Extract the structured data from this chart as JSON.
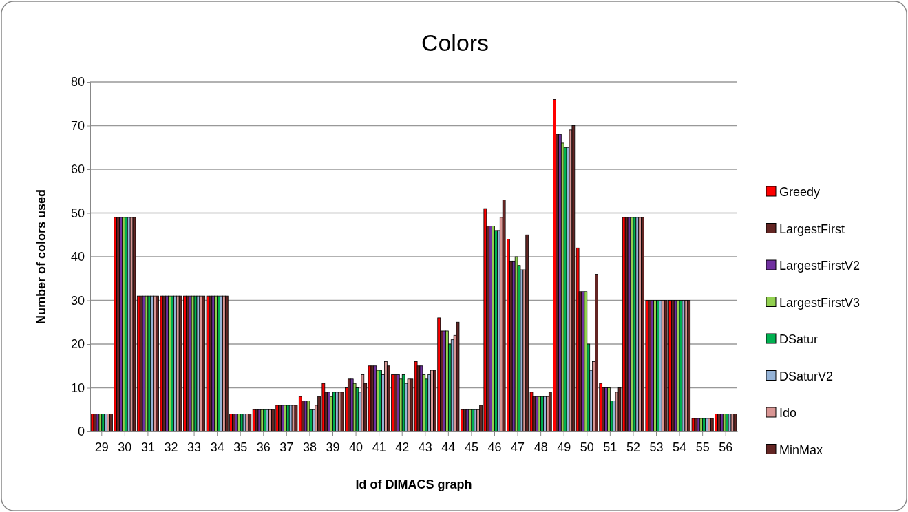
{
  "chart_data": {
    "type": "bar",
    "title": "Colors",
    "xlabel": "Id of DIMACS graph",
    "ylabel": "Number of colors used",
    "categories": [
      "29",
      "30",
      "31",
      "32",
      "33",
      "34",
      "35",
      "36",
      "37",
      "38",
      "39",
      "40",
      "41",
      "42",
      "43",
      "44",
      "45",
      "46",
      "47",
      "48",
      "49",
      "50",
      "51",
      "52",
      "53",
      "54",
      "55",
      "56"
    ],
    "ylim": [
      0,
      80
    ],
    "yticks": [
      0,
      10,
      20,
      30,
      40,
      50,
      60,
      70,
      80
    ],
    "grid": "y",
    "legend": "right",
    "series": [
      {
        "name": "Greedy",
        "color": "#ff0000",
        "values": [
          4,
          49,
          31,
          31,
          31,
          31,
          4,
          5,
          6,
          8,
          11,
          10,
          15,
          13,
          16,
          26,
          5,
          51,
          44,
          9,
          76,
          42,
          11,
          49,
          30,
          30,
          3,
          4
        ]
      },
      {
        "name": "LargestFirst",
        "color": "#632523",
        "values": [
          4,
          49,
          31,
          31,
          31,
          31,
          4,
          5,
          6,
          7,
          9,
          12,
          15,
          13,
          15,
          23,
          5,
          47,
          39,
          8,
          68,
          32,
          10,
          49,
          30,
          30,
          3,
          4
        ]
      },
      {
        "name": "LargestFirstV2",
        "color": "#7030a0",
        "values": [
          4,
          49,
          31,
          31,
          31,
          31,
          4,
          5,
          6,
          7,
          9,
          12,
          15,
          13,
          15,
          23,
          5,
          47,
          39,
          8,
          68,
          32,
          10,
          49,
          30,
          30,
          3,
          4
        ]
      },
      {
        "name": "LargestFirstV3",
        "color": "#92d050",
        "values": [
          4,
          49,
          31,
          31,
          31,
          31,
          4,
          5,
          6,
          7,
          8,
          11,
          14,
          12,
          13,
          23,
          5,
          47,
          40,
          8,
          66,
          32,
          10,
          49,
          30,
          30,
          3,
          4
        ]
      },
      {
        "name": "DSatur",
        "color": "#00b050",
        "values": [
          4,
          49,
          31,
          31,
          31,
          31,
          4,
          5,
          6,
          5,
          9,
          10,
          14,
          13,
          12,
          20,
          5,
          46,
          38,
          8,
          65,
          20,
          7,
          49,
          30,
          30,
          3,
          4
        ]
      },
      {
        "name": "DSaturV2",
        "color": "#95b3d7",
        "values": [
          4,
          49,
          31,
          31,
          31,
          31,
          4,
          5,
          6,
          5,
          9,
          9,
          13,
          11,
          13,
          21,
          5,
          46,
          37,
          8,
          65,
          14,
          7,
          49,
          30,
          30,
          3,
          4
        ]
      },
      {
        "name": "Ido",
        "color": "#d99694",
        "values": [
          4,
          49,
          31,
          31,
          31,
          31,
          4,
          5,
          6,
          6,
          9,
          13,
          16,
          12,
          14,
          22,
          5,
          49,
          37,
          8,
          69,
          16,
          9,
          49,
          30,
          30,
          3,
          4
        ]
      },
      {
        "name": "MinMax",
        "color": "#632523",
        "values": [
          4,
          49,
          31,
          31,
          31,
          31,
          4,
          5,
          6,
          8,
          9,
          11,
          15,
          12,
          14,
          25,
          6,
          53,
          45,
          9,
          70,
          36,
          10,
          49,
          30,
          30,
          3,
          4
        ]
      }
    ]
  }
}
